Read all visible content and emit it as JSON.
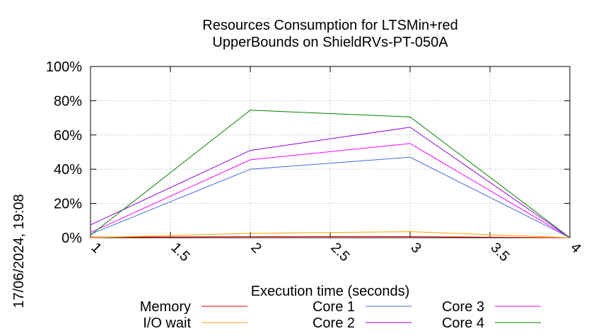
{
  "chart_data": {
    "type": "line",
    "title": [
      "Resources Consumption for LTSMin+red",
      "UpperBounds on ShieldRVs-PT-050A"
    ],
    "xlabel": "Execution time (seconds)",
    "ylabel": "",
    "side_label": "17/06/2024, 19:08",
    "xlim": [
      1,
      4
    ],
    "ylim": [
      0,
      100
    ],
    "x_ticks": [
      1,
      1.5,
      2,
      2.5,
      3,
      3.5,
      4
    ],
    "x_tick_labels": [
      "1",
      "1.5",
      "2",
      "2.5",
      "3",
      "3.5",
      "4"
    ],
    "y_ticks": [
      0,
      20,
      40,
      60,
      80,
      100
    ],
    "y_tick_labels": [
      "0%",
      "20%",
      "40%",
      "60%",
      "80%",
      "100%"
    ],
    "grid": true,
    "legend_position": "bottom",
    "x": [
      1,
      2,
      3,
      4
    ],
    "series": [
      {
        "name": "Memory",
        "color": "#ff0000",
        "values": [
          0.3,
          0.6,
          0.6,
          0
        ]
      },
      {
        "name": "I/O wait",
        "color": "#ffa500",
        "values": [
          0,
          2.5,
          3.5,
          0
        ]
      },
      {
        "name": "Core 1",
        "color": "#4169e1",
        "values": [
          2,
          40,
          47,
          0
        ]
      },
      {
        "name": "Core 2",
        "color": "#9400d3",
        "values": [
          7.5,
          51,
          64.5,
          0
        ]
      },
      {
        "name": "Core 3",
        "color": "#ff00ff",
        "values": [
          3,
          45.5,
          55,
          0
        ]
      },
      {
        "name": "Core 4",
        "color": "#008000",
        "values": [
          1.5,
          74.5,
          70.5,
          0
        ]
      }
    ]
  }
}
